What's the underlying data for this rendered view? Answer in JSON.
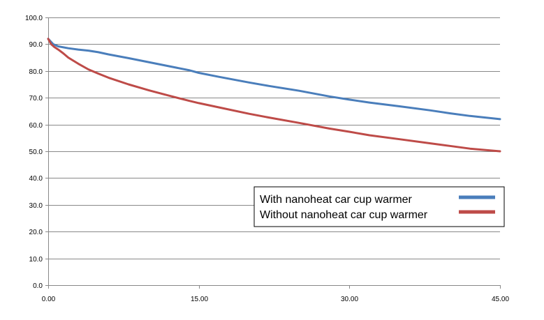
{
  "chart_data": {
    "type": "line",
    "title": "",
    "xlabel": "",
    "ylabel": "",
    "xlim": [
      0,
      45
    ],
    "ylim": [
      0,
      100
    ],
    "x_ticks": [
      0,
      15,
      30,
      45
    ],
    "x_tick_labels": [
      "0.00",
      "15.00",
      "30.00",
      "45.00"
    ],
    "y_ticks": [
      0,
      10,
      20,
      30,
      40,
      50,
      60,
      70,
      80,
      90,
      100
    ],
    "y_tick_labels": [
      "0.0",
      "10.0",
      "20.0",
      "30.0",
      "40.0",
      "50.0",
      "60.0",
      "70.0",
      "80.0",
      "90.0",
      "100.0"
    ],
    "grid": "horizontal",
    "legend_position": "right",
    "series": [
      {
        "name": "With nanoheat car cup warmer",
        "color": "#4a7ebb",
        "x": [
          0,
          0.5,
          1,
          2,
          3,
          4,
          5,
          6,
          8,
          10,
          12,
          14,
          15,
          17,
          20,
          22,
          25,
          28,
          30,
          32,
          35,
          38,
          40,
          42,
          45
        ],
        "y": [
          92.0,
          90.0,
          89.2,
          88.5,
          88.0,
          87.6,
          87.0,
          86.2,
          84.8,
          83.3,
          81.8,
          80.3,
          79.3,
          77.8,
          75.7,
          74.4,
          72.6,
          70.5,
          69.3,
          68.2,
          66.8,
          65.3,
          64.2,
          63.2,
          62.0
        ]
      },
      {
        "name": "Without nanoheat car cup warmer",
        "color": "#be4b48",
        "x": [
          0,
          0.3,
          0.6,
          1,
          1.5,
          2,
          3,
          4,
          5,
          6,
          8,
          10,
          12,
          14,
          15,
          17,
          20,
          22,
          25,
          28,
          30,
          32,
          35,
          38,
          40,
          42,
          45
        ],
        "y": [
          92.0,
          90.0,
          89.0,
          88.0,
          86.6,
          85.0,
          82.7,
          80.6,
          79.0,
          77.5,
          75.0,
          72.8,
          70.8,
          68.9,
          68.0,
          66.4,
          64.0,
          62.6,
          60.6,
          58.5,
          57.3,
          56.0,
          54.5,
          53.0,
          52.0,
          51.0,
          50.0
        ]
      }
    ]
  }
}
